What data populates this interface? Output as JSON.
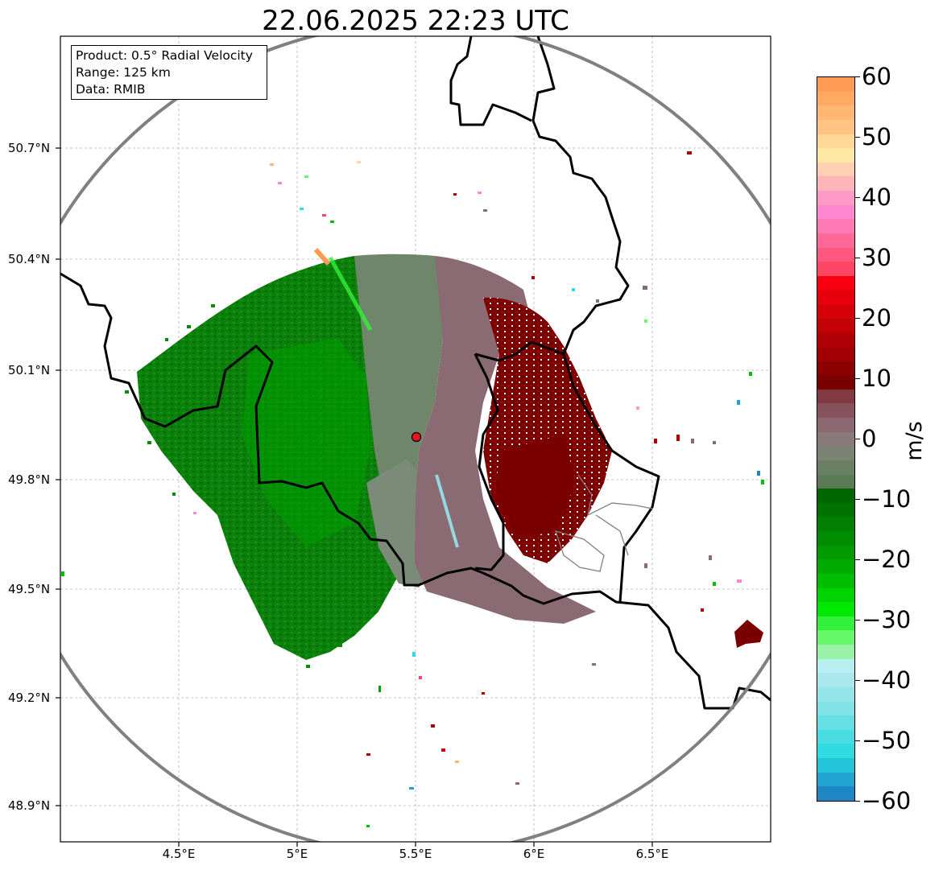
{
  "title": "22.06.2025 22:23 UTC",
  "info": {
    "product": "Product: 0.5° Radial Velocity",
    "range": "Range: 125 km",
    "source": "Data: RMIB"
  },
  "axes": {
    "lat_labels": [
      "50.7°N",
      "50.4°N",
      "50.1°N",
      "49.8°N",
      "49.5°N",
      "49.2°N",
      "48.9°N"
    ],
    "lon_labels": [
      "4.5°E",
      "5°E",
      "5.5°E",
      "6°E",
      "6.5°E"
    ]
  },
  "radar_site": {
    "lat": 49.914,
    "lon": 5.505,
    "marker_color": "#e8141e"
  },
  "range_ring_km": 125,
  "colorbar": {
    "unit": "m/s",
    "min": -60,
    "max": 60,
    "tick_labels": [
      "60",
      "50",
      "40",
      "30",
      "20",
      "10",
      "0",
      "−10",
      "−20",
      "−30",
      "−40",
      "−50",
      "−60"
    ],
    "colors_top_to_bottom": [
      "#ff9b52",
      "#ffa963",
      "#ffb874",
      "#ffc484",
      "#ffd797",
      "#ffe8a3",
      "#ffd0b4",
      "#ffb6bb",
      "#ff9bc9",
      "#ff86d0",
      "#ff7bb6",
      "#ff6898",
      "#ff5780",
      "#ff4564",
      "#f80012",
      "#e8000d",
      "#d50008",
      "#c20006",
      "#b00005",
      "#a00003",
      "#8c0002",
      "#7a0000",
      "#7f3a43",
      "#86535c",
      "#8a6872",
      "#8a7a7a",
      "#7b8473",
      "#6b8062",
      "#5a7a55",
      "#006600",
      "#007200",
      "#007f00",
      "#008c00",
      "#009b00",
      "#00aa00",
      "#00bd00",
      "#00d400",
      "#00e800",
      "#33f03a",
      "#66f86a",
      "#99f2a8",
      "#b8eef2",
      "#a9e9ee",
      "#94e5ea",
      "#7fe3e8",
      "#64e0e4",
      "#47dde2",
      "#2fdbe0",
      "#22c4d8",
      "#1fa4d2",
      "#1f86c5"
    ]
  },
  "echo_regions": [
    {
      "name": "inbound-strong",
      "color": "#0b7d0b"
    },
    {
      "name": "inbound-moderate",
      "color": "#138a13"
    },
    {
      "name": "near-zero",
      "color": "#6f866a"
    },
    {
      "name": "outbound-weak",
      "color": "#8a6a73"
    },
    {
      "name": "outbound-strong",
      "color": "#7a0000"
    }
  ]
}
